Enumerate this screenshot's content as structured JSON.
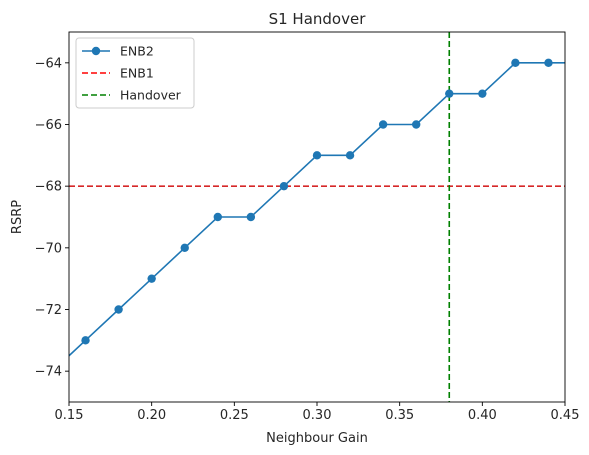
{
  "chart_data": {
    "type": "line",
    "title": "S1 Handover",
    "xlabel": "Neighbour Gain",
    "ylabel": "RSRP",
    "xlim": [
      0.15,
      0.45
    ],
    "ylim": [
      -75,
      -63
    ],
    "x_ticks": [
      0.15,
      0.2,
      0.25,
      0.3,
      0.35,
      0.4,
      0.45
    ],
    "x_tick_labels": [
      "0.15",
      "0.20",
      "0.25",
      "0.30",
      "0.35",
      "0.40",
      "0.45"
    ],
    "y_ticks": [
      -74,
      -72,
      -70,
      -68,
      -66,
      -64
    ],
    "y_tick_labels": [
      "−74",
      "−72",
      "−70",
      "−68",
      "−66",
      "−64"
    ],
    "grid": false,
    "legend_position": "upper-left",
    "series": [
      {
        "name": "ENB2",
        "style": "solid-markers",
        "color": "#1f77b4",
        "x": [
          0.14,
          0.16,
          0.18,
          0.2,
          0.22,
          0.24,
          0.26,
          0.28,
          0.3,
          0.32,
          0.34,
          0.36,
          0.38,
          0.4,
          0.42,
          0.44,
          0.46
        ],
        "y": [
          -74,
          -73,
          -72,
          -71,
          -70,
          -69,
          -69,
          -68,
          -67,
          -67,
          -66,
          -66,
          -65,
          -65,
          -64,
          -64,
          -64
        ]
      }
    ],
    "reference_lines": [
      {
        "name": "ENB1",
        "orientation": "horizontal",
        "value": -68,
        "color": "#d62728",
        "style": "dashed"
      },
      {
        "name": "Handover",
        "orientation": "vertical",
        "value": 0.38,
        "color": "#008000",
        "style": "dashed"
      }
    ],
    "legend": [
      {
        "label": "ENB2",
        "color": "#1f77b4",
        "kind": "line-marker"
      },
      {
        "label": "ENB1",
        "color": "#ff0000",
        "kind": "dashed"
      },
      {
        "label": "Handover",
        "color": "#008000",
        "kind": "dashed"
      }
    ]
  }
}
